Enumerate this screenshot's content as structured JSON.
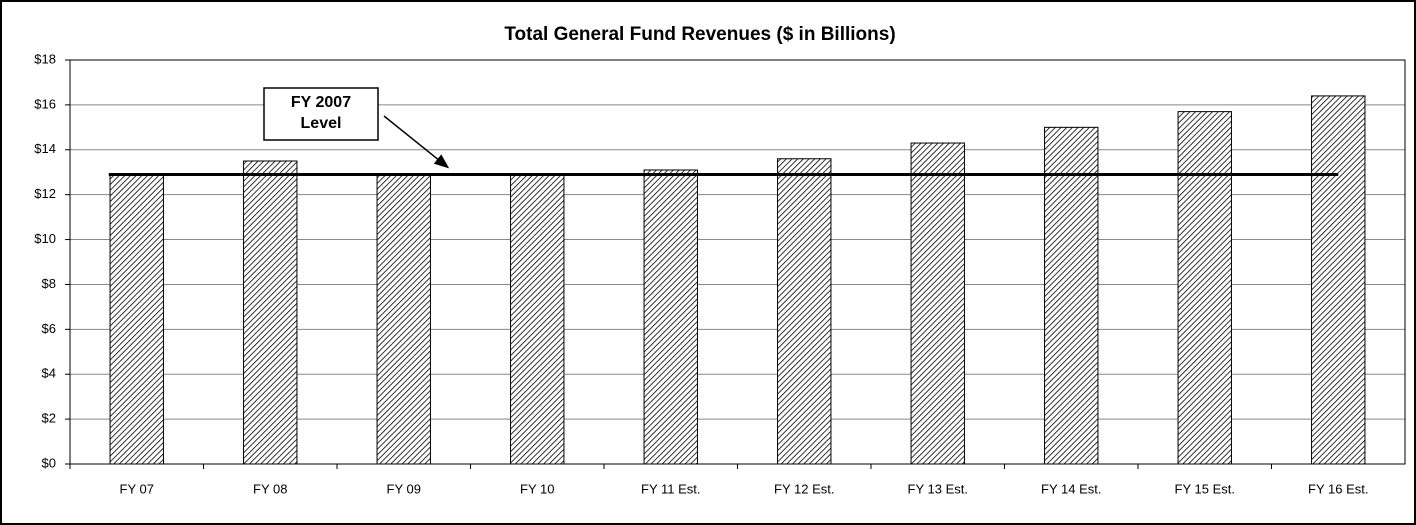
{
  "chart_data": {
    "type": "bar",
    "title": "Total General Fund Revenues ($ in Billions)",
    "categories": [
      "FY 07",
      "FY 08",
      "FY 09",
      "FY 10",
      "FY 11 Est.",
      "FY 12 Est.",
      "FY 13 Est.",
      "FY 14 Est.",
      "FY 15 Est.",
      "FY 16 Est."
    ],
    "values": [
      12.9,
      13.5,
      12.9,
      12.9,
      13.1,
      13.6,
      14.3,
      15.0,
      15.7,
      16.4
    ],
    "color": "#000000",
    "ylim": [
      0,
      18
    ],
    "yticks": [
      {
        "value": 0,
        "label": "$0"
      },
      {
        "value": 2,
        "label": "$2"
      },
      {
        "value": 4,
        "label": "$4"
      },
      {
        "value": 6,
        "label": "$6"
      },
      {
        "value": 8,
        "label": "$8"
      },
      {
        "value": 10,
        "label": "$10"
      },
      {
        "value": 12,
        "label": "$12"
      },
      {
        "value": 14,
        "label": "$14"
      },
      {
        "value": 16,
        "label": "$16"
      },
      {
        "value": 18,
        "label": "$18"
      }
    ],
    "grid": true,
    "reference_line": {
      "value": 12.9,
      "label": [
        "FY 2007",
        "Level"
      ]
    }
  }
}
